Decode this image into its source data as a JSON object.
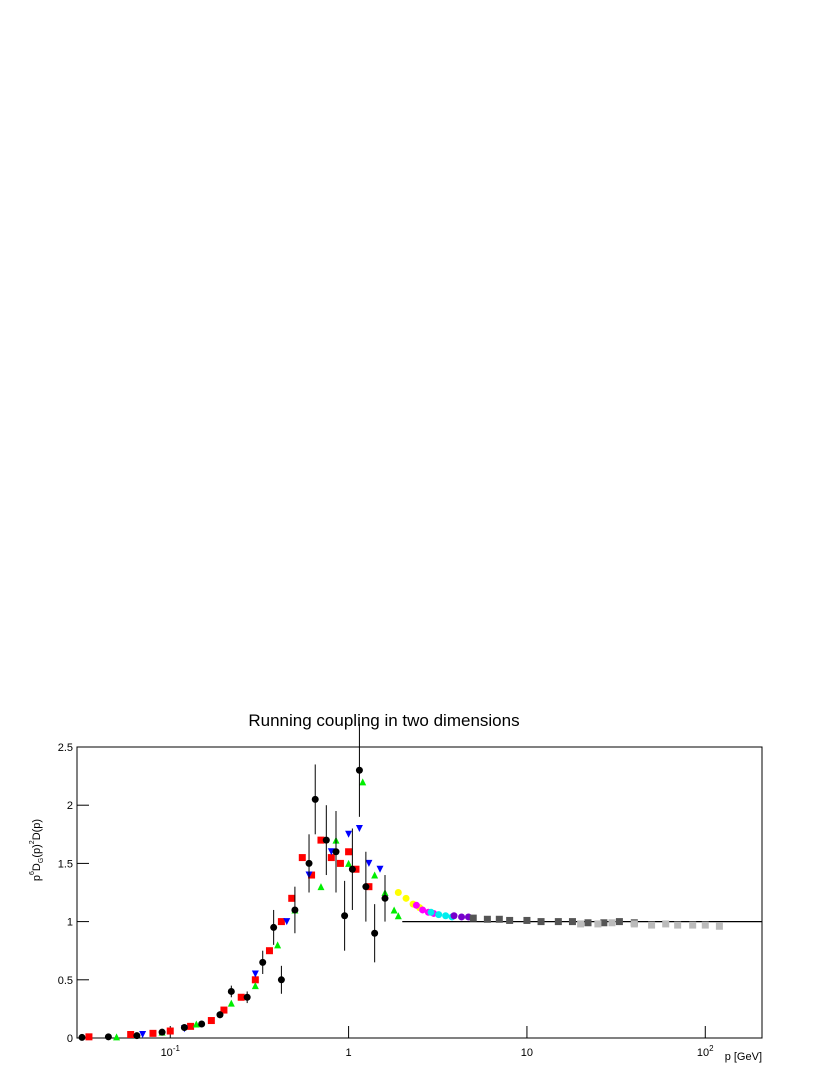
{
  "chart_data": {
    "type": "scatter",
    "title": "Running coupling in two dimensions",
    "ylabel_parts": [
      "p",
      "6",
      "D",
      "G",
      "(p)",
      "2",
      "D(p)"
    ],
    "xlabel": "p [GeV]",
    "log_x": true,
    "xlim": [
      0.03,
      208
    ],
    "ylim": [
      0,
      2.5
    ],
    "xticks": [
      {
        "value": 0.1,
        "label": "10",
        "exponent": "-1"
      },
      1,
      10,
      {
        "value": 100,
        "label": "10",
        "exponent": "2"
      }
    ],
    "yticks": [
      0,
      0.5,
      1,
      1.5,
      2,
      2.5
    ],
    "reference_y": 1,
    "reference_from": 2,
    "series": [
      {
        "color": "#ff0000",
        "marker": "square",
        "x": [
          0.035,
          0.06,
          0.08,
          0.1,
          0.13,
          0.17,
          0.2,
          0.25,
          0.3,
          0.36,
          0.42,
          0.48,
          0.55,
          0.62,
          0.7,
          0.8,
          0.9,
          1.0,
          1.1,
          1.3
        ],
        "values": [
          0.01,
          0.03,
          0.04,
          0.06,
          0.1,
          0.15,
          0.24,
          0.35,
          0.5,
          0.75,
          1.0,
          1.2,
          1.55,
          1.4,
          1.7,
          1.55,
          1.5,
          1.6,
          1.45,
          1.3
        ]
      },
      {
        "color": "#00ee00",
        "marker": "triangle",
        "x": [
          0.05,
          0.09,
          0.14,
          0.22,
          0.3,
          0.4,
          0.5,
          0.7,
          0.85,
          1.0,
          1.2,
          1.4,
          1.6,
          1.8,
          1.9
        ],
        "values": [
          0.01,
          0.05,
          0.12,
          0.3,
          0.45,
          0.8,
          1.1,
          1.3,
          1.7,
          1.5,
          2.2,
          1.4,
          1.25,
          1.1,
          1.05
        ]
      },
      {
        "color": "#0000ff",
        "marker": "triangle-down",
        "x": [
          0.07,
          0.12,
          0.3,
          0.45,
          0.6,
          0.8,
          1.0,
          1.15,
          1.3,
          1.5
        ],
        "values": [
          0.03,
          0.08,
          0.55,
          1.0,
          1.4,
          1.6,
          1.75,
          1.8,
          1.5,
          1.45
        ]
      },
      {
        "color": "#ffff00",
        "marker": "circle",
        "x": [
          1.9,
          2.1,
          2.3,
          2.5
        ],
        "values": [
          1.25,
          1.2,
          1.15,
          1.12
        ]
      },
      {
        "color": "#ff00ff",
        "marker": "circle",
        "x": [
          2.4,
          2.6,
          2.8,
          3.0
        ],
        "values": [
          1.14,
          1.1,
          1.08,
          1.07
        ]
      },
      {
        "color": "#00eeee",
        "marker": "circle",
        "x": [
          2.9,
          3.2,
          3.5,
          3.8
        ],
        "values": [
          1.08,
          1.06,
          1.05,
          1.04
        ]
      },
      {
        "color": "#7700cc",
        "marker": "circle",
        "x": [
          3.9,
          4.3,
          4.7
        ],
        "values": [
          1.05,
          1.04,
          1.04
        ]
      },
      {
        "color": "#555555",
        "marker": "square",
        "x": [
          5,
          6,
          7,
          8,
          10,
          12,
          15,
          18,
          22,
          27,
          33,
          40
        ],
        "values": [
          1.03,
          1.02,
          1.02,
          1.01,
          1.01,
          1.0,
          1.0,
          1.0,
          0.99,
          0.99,
          1.0,
          0.99
        ]
      },
      {
        "color": "#bbbbbb",
        "marker": "square",
        "x": [
          20,
          25,
          30,
          40,
          50,
          60,
          70,
          85,
          100,
          120
        ],
        "values": [
          0.98,
          0.98,
          0.99,
          0.98,
          0.97,
          0.98,
          0.97,
          0.97,
          0.97,
          0.96
        ]
      },
      {
        "color": "#000000",
        "marker": "circle",
        "x": [
          0.032,
          0.045,
          0.065,
          0.09,
          0.12,
          0.15,
          0.19,
          0.22,
          0.27,
          0.33,
          0.38,
          0.42,
          0.5,
          0.6,
          0.65,
          0.75,
          0.85,
          0.95,
          1.05,
          1.15,
          1.25,
          1.4,
          1.6
        ],
        "values": [
          0.005,
          0.01,
          0.02,
          0.05,
          0.09,
          0.12,
          0.2,
          0.4,
          0.35,
          0.65,
          0.95,
          0.5,
          1.1,
          1.5,
          2.05,
          1.7,
          1.6,
          1.05,
          1.45,
          2.3,
          1.3,
          0.9,
          1.2
        ],
        "errors": [
          0.002,
          0.004,
          0.006,
          0.01,
          0.015,
          0.02,
          0.03,
          0.05,
          0.05,
          0.1,
          0.15,
          0.12,
          0.2,
          0.25,
          0.3,
          0.3,
          0.35,
          0.3,
          0.35,
          0.4,
          0.3,
          0.25,
          0.2
        ]
      }
    ]
  }
}
